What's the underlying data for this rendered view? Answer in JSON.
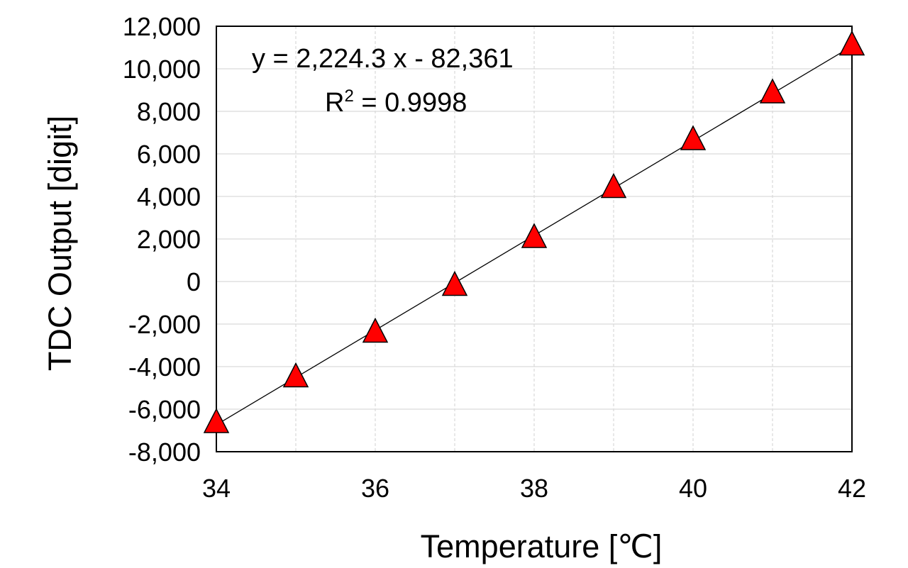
{
  "chart_data": {
    "type": "scatter",
    "xlabel": "Temperature [℃]",
    "ylabel": "TDC Output  [digit]",
    "xlim": [
      34,
      42
    ],
    "ylim": [
      -8000,
      12000
    ],
    "x_ticks": [
      34,
      36,
      38,
      40,
      42
    ],
    "y_ticks": [
      -8000,
      -6000,
      -4000,
      -2000,
      0,
      2000,
      4000,
      6000,
      8000,
      10000,
      12000
    ],
    "x_tick_labels": [
      "34",
      "36",
      "38",
      "40",
      "42"
    ],
    "y_tick_labels": [
      "-8,000",
      "-6,000",
      "-4,000",
      "-2,000",
      "0",
      "2,000",
      "4,000",
      "6,000",
      "8,000",
      "10,000",
      "12,000"
    ],
    "grid": true,
    "series": [
      {
        "marker": "triangle",
        "color": "#ff0000",
        "points": [
          {
            "x": 34,
            "y": -6700
          },
          {
            "x": 35,
            "y": -4550
          },
          {
            "x": 36,
            "y": -2450
          },
          {
            "x": 37,
            "y": -250
          },
          {
            "x": 38,
            "y": 2000
          },
          {
            "x": 39,
            "y": 4350
          },
          {
            "x": 40,
            "y": 6600
          },
          {
            "x": 41,
            "y": 8800
          },
          {
            "x": 42,
            "y": 11050
          }
        ]
      }
    ],
    "trendline": {
      "slope": 2224.3,
      "intercept": -82361,
      "color": "#000000"
    },
    "annotations": {
      "equation": "y = 2,224.3 x - 82,361",
      "r2_label": "R",
      "r2_sup": "2",
      "r2_value": " = 0.9998"
    }
  }
}
